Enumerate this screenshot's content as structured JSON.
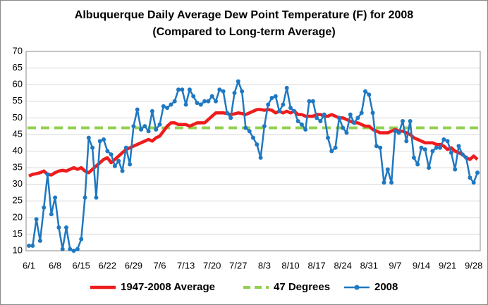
{
  "chart_data": {
    "type": "line",
    "title": "Albuquerque Daily Average Dew Point Temperature (F) for 2008",
    "subtitle": "(Compared to Long-term Average)",
    "categories": [
      "6/1",
      null,
      null,
      null,
      null,
      null,
      null,
      "6/8",
      null,
      null,
      null,
      null,
      null,
      null,
      "6/15",
      null,
      null,
      null,
      null,
      null,
      null,
      "6/22",
      null,
      null,
      null,
      null,
      null,
      null,
      "6/29",
      null,
      null,
      null,
      null,
      null,
      null,
      "7/6",
      null,
      null,
      null,
      null,
      null,
      null,
      "7/13",
      null,
      null,
      null,
      null,
      null,
      null,
      "7/20",
      null,
      null,
      null,
      null,
      null,
      null,
      "7/27",
      null,
      null,
      null,
      null,
      null,
      null,
      "8/3",
      null,
      null,
      null,
      null,
      null,
      null,
      "8/10",
      null,
      null,
      null,
      null,
      null,
      null,
      "8/17",
      null,
      null,
      null,
      null,
      null,
      null,
      "8/24",
      null,
      null,
      null,
      null,
      null,
      null,
      "8/31",
      null,
      null,
      null,
      null,
      null,
      null,
      "9/7",
      null,
      null,
      null,
      null,
      null,
      null,
      "9/14",
      null,
      null,
      null,
      null,
      null,
      null,
      "9/21",
      null,
      null,
      null,
      null,
      null,
      null,
      "9/28",
      null
    ],
    "series": [
      {
        "name": "1947-2008 Average",
        "color": "#ee1c1c",
        "values": [
          32.5,
          33,
          33.2,
          33.5,
          34,
          33,
          32.8,
          33.5,
          34,
          34.2,
          34,
          34.5,
          35,
          34.5,
          35,
          34,
          33.5,
          34.5,
          35.5,
          36.5,
          37.5,
          38,
          36.5,
          37.5,
          38.5,
          39.5,
          40.5,
          41,
          41.5,
          42,
          42.5,
          43,
          43.5,
          43,
          44,
          44.5,
          46,
          47.5,
          48.5,
          48.5,
          48,
          48,
          48,
          47.5,
          48,
          48.5,
          48.5,
          48.5,
          49.5,
          50.5,
          51.5,
          51.5,
          51.5,
          51.3,
          51,
          51.2,
          51.5,
          51.3,
          51,
          51.5,
          52,
          52.5,
          52.5,
          52.3,
          52.5,
          52.3,
          51.5,
          52,
          51.5,
          52,
          51.5,
          52,
          51,
          51,
          50.5,
          50.5,
          50.5,
          51,
          51,
          50.5,
          50.5,
          51,
          50.5,
          50,
          50,
          49.5,
          49,
          48.5,
          48.5,
          48,
          47.5,
          47.5,
          46.5,
          46,
          45.5,
          45.5,
          45.5,
          46,
          46.5,
          46,
          46,
          45.5,
          45,
          44,
          43.5,
          43,
          42.5,
          42.5,
          42.5,
          42,
          42,
          41.5,
          40.5,
          41,
          40,
          39.5,
          39,
          38,
          37.5,
          38.5,
          37.5
        ]
      },
      {
        "name": "2008",
        "color": "#1f78c1",
        "values": [
          11.5,
          11.5,
          19.5,
          13,
          23,
          33,
          21,
          26,
          17,
          10.5,
          17,
          10.5,
          10,
          10.5,
          13.5,
          26,
          44,
          41,
          26,
          43,
          43.5,
          40,
          39,
          35.5,
          37,
          34,
          41,
          36,
          47.5,
          52.5,
          46.5,
          47.5,
          46,
          52,
          46.5,
          48,
          53.5,
          53,
          54,
          55,
          58.5,
          58.5,
          54,
          58.5,
          56.5,
          54.5,
          54,
          55,
          55,
          56.5,
          55,
          58.5,
          58,
          51.5,
          50,
          57.5,
          61,
          58,
          47,
          46,
          44,
          42,
          38,
          47.5,
          54,
          56,
          56.5,
          52,
          54,
          59,
          53,
          52,
          49,
          48,
          46.5,
          55,
          55,
          50,
          49,
          51,
          44,
          40,
          41,
          50,
          47,
          45.5,
          51,
          48.5,
          50,
          51.5,
          58,
          57,
          51.5,
          41.5,
          41,
          30.5,
          34.5,
          30.5,
          46,
          45.5,
          49,
          43,
          49,
          38,
          36,
          41,
          40.5,
          35,
          40,
          41,
          41,
          43.5,
          43,
          39.5,
          34.5,
          41.5,
          39,
          38,
          32,
          30.5,
          33.5
        ]
      }
    ],
    "reference_lines": [
      {
        "name": "47 Degrees",
        "value": 47,
        "color": "#92d050"
      }
    ],
    "ylim": [
      10,
      70
    ],
    "yticks": [
      10,
      15,
      20,
      25,
      30,
      35,
      40,
      45,
      50,
      55,
      60,
      65,
      70
    ],
    "grid": true
  }
}
